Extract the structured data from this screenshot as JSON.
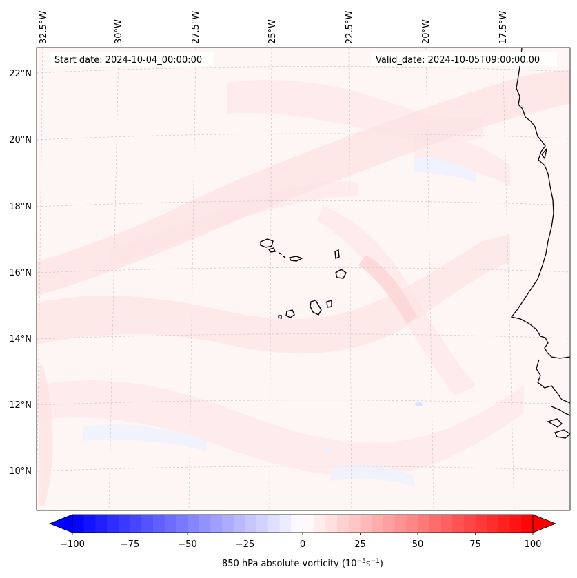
{
  "map": {
    "start_date_label": "Start date: 2024-10-04_00:00:00",
    "valid_date_label": "Valid_date: 2024-10-05T09:00:00.00",
    "lon_labels": [
      "32.5°W",
      "30°W",
      "27.5°W",
      "25°W",
      "22.5°W",
      "20°W",
      "17.5°W"
    ],
    "lat_labels": [
      "22°N",
      "20°N",
      "18°N",
      "16°N",
      "14°N",
      "12°N",
      "10°N"
    ],
    "variable": "850 hPa absolute vorticity"
  },
  "colorbar": {
    "label_prefix": "850 hPa absolute vorticity (10",
    "label_exp1": "−5",
    "label_mid": "s",
    "label_exp2": "−1",
    "label_suffix": ")",
    "ticks": [
      "−100",
      "−75",
      "−50",
      "−25",
      "0",
      "25",
      "50",
      "75",
      "100"
    ],
    "min": -100,
    "max": 100,
    "step": 5,
    "extend": "both",
    "cmap": "bwr",
    "colors": {
      "negative": "#0000ff",
      "neutral": "#ffffff",
      "positive": "#ff0000"
    }
  },
  "colors": {
    "weak_positive": "#fde4e4",
    "faint_positive": "#fef3f3",
    "weak_negative": "#eef2fe",
    "coast": "#000000",
    "grid": "#c8c8c8"
  }
}
